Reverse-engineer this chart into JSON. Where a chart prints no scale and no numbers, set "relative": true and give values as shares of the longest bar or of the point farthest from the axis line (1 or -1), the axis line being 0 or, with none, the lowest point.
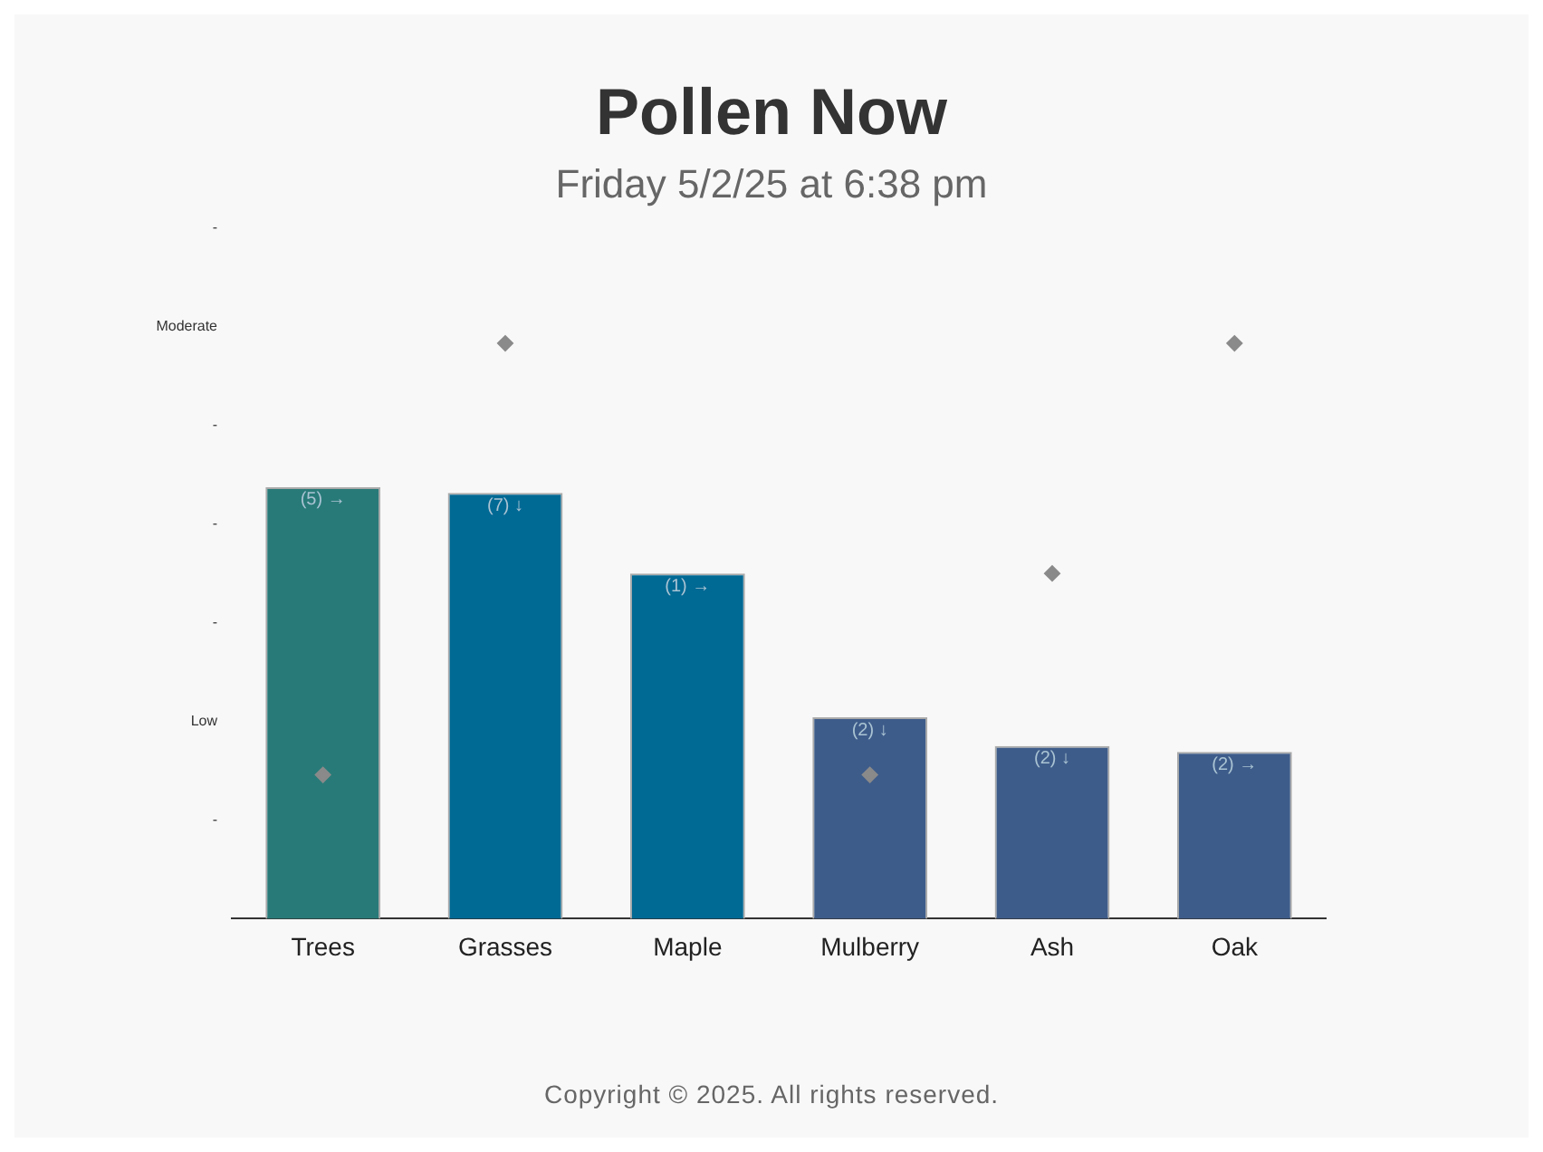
{
  "chart_data": {
    "type": "bar",
    "title": "Pollen Now",
    "subtitle": "Friday 5/2/25 at 6:38 pm",
    "relative": true,
    "categories": [
      "Trees",
      "Grasses",
      "Maple",
      "Mulberry",
      "Ash",
      "Oak"
    ],
    "series": [
      {
        "colors": [
          "#287a78",
          "#006994",
          "#006994",
          "#3e5c8a",
          "#3e5c8a",
          "#3e5c8a"
        ],
        "values": [
          0.75,
          0.74,
          0.6,
          0.35,
          0.3,
          0.29
        ]
      },
      {
        "type": "scatter",
        "color": "#8a8a8a",
        "x": [
          "Trees",
          "Grasses",
          "Mulberry",
          "Ash",
          "Oak"
        ],
        "values": [
          0.25,
          1,
          0.25,
          0.6,
          1
        ]
      }
    ],
    "grid": false,
    "legend": false,
    "marker": "diamond",
    "annotations": [
      {
        "text": "(5) →",
        "x": "Trees",
        "y": 0.75
      },
      {
        "text": "(7) ↓",
        "x": "Grasses",
        "y": 0.74
      },
      {
        "text": "(1) →",
        "x": "Maple",
        "y": 0.6
      },
      {
        "text": "(2) ↓",
        "x": "Mulberry",
        "y": 0.35
      },
      {
        "text": "(2) ↓",
        "x": "Ash",
        "y": 0.3
      },
      {
        "text": "(2) →",
        "x": "Oak",
        "y": 0.29
      },
      "-",
      "Moderate",
      "-",
      "-",
      "-",
      "Low",
      "-",
      "Copyright © 2025. All rights reserved."
    ]
  }
}
